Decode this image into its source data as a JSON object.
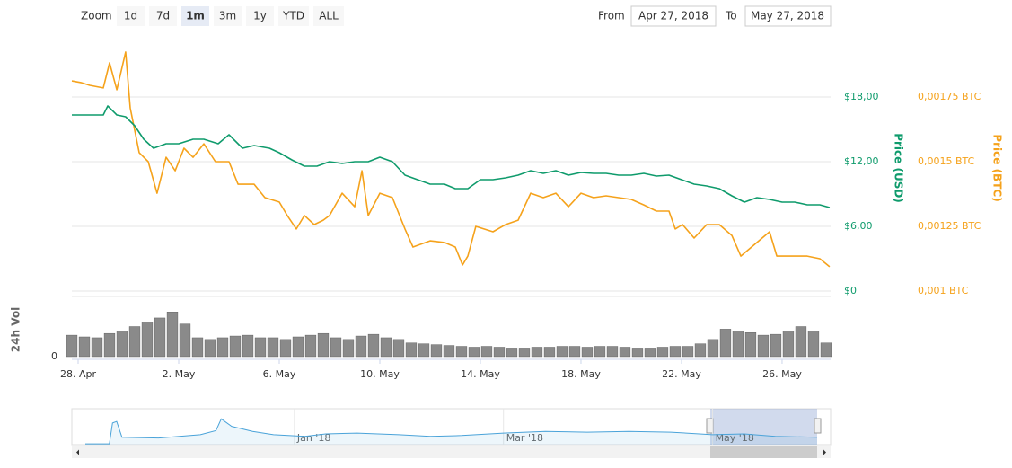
{
  "ui": {
    "zoom_label": "Zoom",
    "buttons": [
      "1d",
      "7d",
      "1m",
      "3m",
      "1y",
      "YTD",
      "ALL"
    ],
    "selected": "1m",
    "from_label": "From",
    "from": "Apr 27, 2018",
    "to_label": "To",
    "to": "May 27, 2018"
  },
  "chart_data": {
    "type": "line",
    "xlim": [
      -0.25,
      29.93
    ],
    "xticks": [
      {
        "value": 0,
        "label": "28. Apr"
      },
      {
        "value": 4,
        "label": "2. May"
      },
      {
        "value": 8,
        "label": "6. May"
      },
      {
        "value": 12,
        "label": "10. May"
      },
      {
        "value": 16,
        "label": "14. May"
      },
      {
        "value": 20,
        "label": "18. May"
      },
      {
        "value": 24,
        "label": "22. May"
      },
      {
        "value": 28,
        "label": "26. May"
      }
    ],
    "ylabel": "Price (USD)",
    "ylim": [
      0,
      24
    ],
    "yticks": [
      {
        "value": 0,
        "label": "$0"
      },
      {
        "value": 6,
        "label": "$6,00"
      },
      {
        "value": 12,
        "label": "$12,00"
      },
      {
        "value": 18,
        "label": "$18,00"
      }
    ],
    "y2label": "Price (BTC)",
    "y2lim": [
      0.001,
      0.002
    ],
    "y2ticks": [
      {
        "value": 0.001,
        "label": "0,001 BTC"
      },
      {
        "value": 0.00125,
        "label": "0,00125 BTC"
      },
      {
        "value": 0.0015,
        "label": "0,0015 BTC"
      },
      {
        "value": 0.00175,
        "label": "0,00175 BTC"
      }
    ],
    "grid": true,
    "series": [
      {
        "name": "Price (USD)",
        "color": "#0f9b6c",
        "x": [
          -0.25,
          0.46,
          1,
          1.18,
          1.54,
          1.89,
          2.25,
          2.61,
          3,
          3.5,
          4,
          4.57,
          5,
          5.57,
          6,
          6.54,
          7,
          7.61,
          8,
          8.5,
          9,
          9.5,
          10,
          10.5,
          11,
          11.54,
          12,
          12.5,
          13,
          13.5,
          14,
          14.57,
          15,
          15.5,
          16,
          16.5,
          17,
          17.5,
          18,
          18.5,
          19,
          19.5,
          20,
          20.5,
          21,
          21.5,
          22,
          22.5,
          23,
          23.5,
          24,
          24.5,
          25,
          25.5,
          26,
          26.5,
          27,
          27.5,
          28,
          28.5,
          29,
          29.5,
          29.89
        ],
        "values": [
          16.33,
          16.33,
          16.33,
          17.17,
          16.33,
          16.17,
          15.33,
          14.08,
          13.25,
          13.67,
          13.67,
          14.08,
          14.08,
          13.67,
          14.5,
          13.25,
          13.5,
          13.25,
          12.83,
          12.17,
          11.58,
          11.58,
          12,
          11.83,
          12,
          12,
          12.42,
          12,
          10.75,
          10.33,
          9.92,
          9.92,
          9.5,
          9.5,
          10.33,
          10.33,
          10.5,
          10.75,
          11.17,
          10.92,
          11.17,
          10.75,
          11,
          10.92,
          10.92,
          10.75,
          10.75,
          10.92,
          10.67,
          10.75,
          10.33,
          9.92,
          9.75,
          9.5,
          8.83,
          8.25,
          8.67,
          8.5,
          8.25,
          8.25,
          8,
          8,
          7.75
        ]
      },
      {
        "name": "Price (BTC)",
        "color": "#f5a21b",
        "axis": "y2",
        "x": [
          -0.25,
          0.11,
          0.46,
          1,
          1.25,
          1.54,
          1.89,
          2.07,
          2.43,
          2.79,
          3.14,
          3.5,
          3.86,
          4.21,
          4.57,
          5,
          5.46,
          6,
          6.36,
          7,
          7.43,
          8,
          8.32,
          8.68,
          9,
          9.39,
          9.75,
          10,
          10.5,
          11,
          11.29,
          11.54,
          12,
          12.5,
          13,
          13.32,
          14,
          14.57,
          15,
          15.29,
          15.5,
          15.82,
          16.5,
          17,
          17.5,
          17.75,
          18,
          18.5,
          19,
          19.5,
          20,
          20.5,
          21,
          21.5,
          22,
          22.5,
          23,
          23.5,
          23.75,
          24.04,
          24.5,
          25,
          25.5,
          26,
          26.36,
          27,
          27.5,
          27.79,
          28.5,
          29,
          29.5,
          29.89
        ],
        "values": [
          0.001812,
          0.001806,
          0.001795,
          0.001785,
          0.001882,
          0.001778,
          0.001924,
          0.001708,
          0.001535,
          0.0015,
          0.001378,
          0.001517,
          0.001465,
          0.001552,
          0.001517,
          0.001569,
          0.0015,
          0.0015,
          0.001413,
          0.001413,
          0.001361,
          0.001344,
          0.001292,
          0.00124,
          0.001292,
          0.001257,
          0.001274,
          0.001292,
          0.001378,
          0.001326,
          0.001465,
          0.001292,
          0.001378,
          0.001361,
          0.00124,
          0.00117,
          0.001194,
          0.001188,
          0.00117,
          0.001101,
          0.001135,
          0.00125,
          0.001229,
          0.001257,
          0.001274,
          0.001326,
          0.001378,
          0.001361,
          0.001378,
          0.001326,
          0.001378,
          0.001361,
          0.001368,
          0.001361,
          0.001354,
          0.001333,
          0.001309,
          0.001309,
          0.00124,
          0.001257,
          0.001205,
          0.001257,
          0.001257,
          0.001215,
          0.001135,
          0.001188,
          0.001229,
          0.001135,
          0.001135,
          0.001135,
          0.001125,
          0.001094
        ]
      }
    ],
    "volume": {
      "type": "bar",
      "ylabel": "24h Vol",
      "color": "#8a8a8a",
      "ylim": [
        0,
        70
      ],
      "yticks": [
        0
      ],
      "x": [
        -0.25,
        0.25,
        0.75,
        1.25,
        1.75,
        2.25,
        2.75,
        3.25,
        3.75,
        4.25,
        4.75,
        5.25,
        5.75,
        6.25,
        6.75,
        7.25,
        7.75,
        8.25,
        8.75,
        9.25,
        9.75,
        10.25,
        10.75,
        11.25,
        11.75,
        12.25,
        12.75,
        13.25,
        13.75,
        14.25,
        14.75,
        15.25,
        15.75,
        16.25,
        16.75,
        17.25,
        17.75,
        18.25,
        18.75,
        19.25,
        19.75,
        20.25,
        20.75,
        21.25,
        21.75,
        22.25,
        22.75,
        23.25,
        23.75,
        24.25,
        24.75,
        25.25,
        25.75,
        26.25,
        26.75,
        27.25,
        27.75,
        28.25,
        28.75,
        29.25,
        29.75
      ],
      "values": [
        25,
        23,
        22,
        27,
        30,
        35,
        40,
        45,
        52,
        38,
        22,
        20,
        22,
        24,
        25,
        22,
        22,
        20,
        23,
        25,
        27,
        22,
        20,
        24,
        26,
        22,
        20,
        16,
        15,
        14,
        13,
        12,
        11,
        12,
        11,
        10,
        10,
        11,
        11,
        12,
        12,
        11,
        12,
        12,
        11,
        10,
        10,
        11,
        12,
        12,
        15,
        20,
        32,
        30,
        28,
        25,
        26,
        30,
        35,
        30,
        16
      ]
    },
    "navigator": {
      "type": "area",
      "color": "#4aa3d9",
      "xlim": [
        -2,
        5
      ],
      "ylim": [
        0,
        40
      ],
      "xticks": [
        {
          "value": 0,
          "label": "Jan '18"
        },
        {
          "value": 2,
          "label": "Mar '18"
        },
        {
          "value": 4,
          "label": "May '18"
        }
      ],
      "x": [
        -2,
        -1.77,
        -1.74,
        -1.7,
        -1.65,
        -1.3,
        -0.9,
        -0.75,
        -0.7,
        -0.6,
        -0.4,
        -0.2,
        0.1,
        0.3,
        0.6,
        1,
        1.3,
        1.6,
        2,
        2.4,
        2.8,
        3.2,
        3.6,
        4,
        4.3,
        4.6,
        5
      ],
      "values": [
        1,
        1,
        26,
        28,
        9,
        8,
        12,
        17,
        31,
        22,
        16,
        12,
        10,
        13,
        14,
        12,
        10,
        11,
        14,
        16,
        15,
        16,
        15,
        12,
        13,
        10,
        9
      ]
    }
  }
}
